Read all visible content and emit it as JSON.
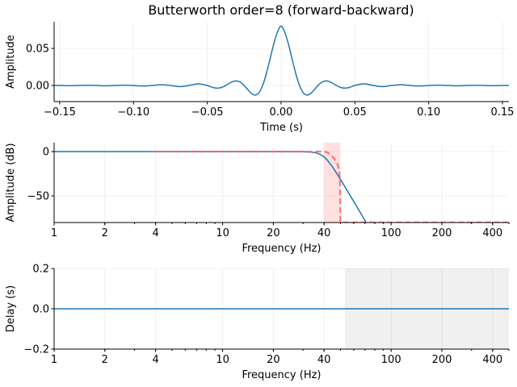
{
  "chart_data": [
    {
      "type": "line",
      "title": "Butterworth order=8 (forward-backward)",
      "xlabel": "Time (s)",
      "ylabel": "Amplitude",
      "xlim": [
        -0.1538,
        0.1544
      ],
      "ylim": [
        -0.0217,
        0.0859
      ],
      "xticks": [
        -0.15,
        -0.1,
        -0.05,
        0.0,
        0.05,
        0.1,
        0.15
      ],
      "xtick_labels": [
        "−0.15",
        "−0.10",
        "−0.05",
        "0.00",
        "0.05",
        "0.10",
        "0.15"
      ],
      "yticks": [
        0,
        0.05
      ],
      "ytick_labels": [
        "0.00",
        "0.05"
      ],
      "grid": true,
      "color": "#1f77b4",
      "x": [
        -0.155,
        -0.15,
        -0.14375,
        -0.1375,
        -0.13125,
        -0.125,
        -0.11875,
        -0.1125,
        -0.10625,
        -0.1,
        -0.09375,
        -0.0875,
        -0.08125,
        -0.075,
        -0.06875,
        -0.0625,
        -0.05625,
        -0.05,
        -0.0475,
        -0.045,
        -0.0425,
        -0.04,
        -0.0375,
        -0.035,
        -0.0325,
        -0.03,
        -0.0275,
        -0.025,
        -0.0225,
        -0.02,
        -0.0175,
        -0.015,
        -0.0125,
        -0.01,
        -0.0075,
        -0.005,
        -0.0025,
        0,
        0.0025,
        0.005,
        0.0075,
        0.01,
        0.0125,
        0.015,
        0.0175,
        0.02,
        0.0225,
        0.025,
        0.0275,
        0.03,
        0.0325,
        0.035,
        0.0375,
        0.04,
        0.0425,
        0.045,
        0.0475,
        0.05,
        0.05625,
        0.0625,
        0.06875,
        0.075,
        0.08125,
        0.0875,
        0.09375,
        0.1,
        0.10625,
        0.1125,
        0.11875,
        0.125,
        0.13125,
        0.1375,
        0.14375,
        0.15,
        0.155
      ],
      "y": [
        0,
        0,
        -0.0002,
        0,
        0.0003,
        0,
        -0.0004,
        0,
        0.0005,
        0,
        -0.0007,
        0,
        0.001,
        0,
        -0.0015,
        0,
        0.0022,
        0,
        -0.0018,
        -0.0032,
        -0.0035,
        -0.0024,
        0,
        0.003,
        0.0054,
        0.0061,
        0.0043,
        0,
        -0.0057,
        -0.0109,
        -0.0129,
        -0.0097,
        0,
        0.0158,
        0.0356,
        0.0557,
        0.0718,
        0.08,
        0.0718,
        0.0557,
        0.0356,
        0.0158,
        0,
        -0.0097,
        -0.0129,
        -0.0109,
        -0.0057,
        0,
        0.0043,
        0.0061,
        0.0054,
        0.003,
        0,
        -0.0024,
        -0.0035,
        -0.0032,
        -0.0018,
        0,
        0.0022,
        0,
        -0.0015,
        0,
        0.001,
        0,
        -0.0007,
        0,
        0.0005,
        0,
        -0.0004,
        0,
        0.0003,
        0,
        -0.0002,
        0,
        0
      ]
    },
    {
      "type": "line",
      "xlabel": "Frequency (Hz)",
      "ylabel": "Amplitude (dB)",
      "xscale": "log",
      "xlim": [
        1,
        500
      ],
      "ylim": [
        -80,
        10
      ],
      "xticks": [
        1,
        2,
        4,
        10,
        20,
        40,
        100,
        200,
        400
      ],
      "xtick_labels": [
        "1",
        "2",
        "4",
        "10",
        "20",
        "40",
        "100",
        "200",
        "400"
      ],
      "yticks": [
        -50,
        0
      ],
      "ytick_labels": [
        "−50",
        "0"
      ],
      "grid": true,
      "transition_band": [
        40,
        50
      ],
      "transition_band_color": "#ffcccc",
      "series": [
        {
          "style": "solid",
          "color": "#1f77b4",
          "x": [
            1,
            10,
            20,
            30,
            35,
            38,
            40,
            42,
            45,
            50,
            55,
            60,
            65,
            70,
            72
          ],
          "y": [
            0,
            0,
            0,
            -0.09,
            -0.97,
            -3.17,
            -6.02,
            -10.05,
            -17.6,
            -31.2,
            -44.3,
            -56.3,
            -67.5,
            -77.8,
            -81.7
          ]
        },
        {
          "style": "dashed",
          "color": "#ff6666",
          "x": [
            4,
            40,
            42,
            44,
            46,
            48,
            49,
            49.7,
            50,
            500
          ],
          "y": [
            0,
            0,
            -0.97,
            -4.4,
            -8,
            -14,
            -20,
            -30,
            -80,
            -80
          ]
        }
      ]
    },
    {
      "type": "line",
      "xlabel": "Frequency (Hz)",
      "ylabel": "Delay (s)",
      "xscale": "log",
      "xlim": [
        1,
        500
      ],
      "ylim": [
        -0.2,
        0.2
      ],
      "xticks": [
        1,
        2,
        4,
        10,
        20,
        40,
        100,
        200,
        400
      ],
      "xtick_labels": [
        "1",
        "2",
        "4",
        "10",
        "20",
        "40",
        "100",
        "200",
        "400"
      ],
      "yticks": [
        -0.2,
        0,
        0.2
      ],
      "ytick_labels": [
        "−0.2",
        "0.0",
        "0.2"
      ],
      "grid": true,
      "shaded_region": [
        53,
        500
      ],
      "shaded_color": "#f0f0f0",
      "series": [
        {
          "style": "solid",
          "color": "#1f77b4",
          "x": [
            1,
            500
          ],
          "y": [
            0,
            0
          ]
        }
      ]
    }
  ]
}
